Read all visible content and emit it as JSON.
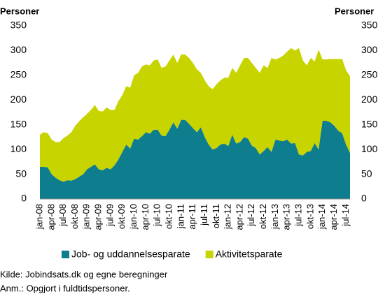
{
  "chart_data": {
    "type": "stacked_area",
    "y_label": "Personer",
    "y2_label": "Personer",
    "categories": [
      "jan-08",
      null,
      null,
      "apr-08",
      null,
      null,
      "jul-08",
      null,
      null,
      "okt-08",
      null,
      null,
      "jan-09",
      null,
      null,
      "apr-09",
      null,
      null,
      "jul-09",
      null,
      null,
      "okt-09",
      null,
      null,
      "jan-10",
      null,
      null,
      "apr-10",
      null,
      null,
      "jul-10",
      null,
      null,
      "okt-10",
      null,
      null,
      "jan-11",
      null,
      null,
      "apr-11",
      null,
      null,
      "jul-11",
      null,
      null,
      "okt-11",
      null,
      null,
      "jan-12",
      null,
      null,
      "apr-12",
      null,
      null,
      "jul-12",
      null,
      null,
      "okt-12",
      null,
      null,
      "jan-13",
      null,
      null,
      "apr-13",
      null,
      null,
      "jul-13",
      null,
      null,
      "okt-13",
      null,
      null,
      "jan-14",
      null,
      null,
      "apr-14",
      null,
      null,
      "jul-14",
      null
    ],
    "series": [
      {
        "name": "Job- og uddannelsesparate",
        "color": "#0e7e8e",
        "values": [
          65,
          65,
          64,
          50,
          43,
          38,
          35,
          38,
          37,
          40,
          45,
          50,
          60,
          65,
          70,
          60,
          58,
          63,
          60,
          68,
          80,
          95,
          110,
          102,
          122,
          120,
          127,
          135,
          132,
          140,
          140,
          128,
          127,
          140,
          155,
          142,
          160,
          160,
          152,
          143,
          135,
          145,
          125,
          110,
          100,
          103,
          110,
          112,
          107,
          130,
          112,
          115,
          125,
          122,
          108,
          103,
          90,
          97,
          105,
          95,
          120,
          118,
          117,
          120,
          112,
          113,
          90,
          88,
          95,
          97,
          113,
          100,
          158,
          158,
          155,
          148,
          138,
          133,
          110,
          93
        ]
      },
      {
        "name": "Aktivitetsparate",
        "color": "#c8d400",
        "values": [
          65,
          70,
          69,
          70,
          72,
          77,
          88,
          90,
          98,
          108,
          112,
          115,
          112,
          115,
          120,
          118,
          119,
          122,
          120,
          112,
          118,
          115,
          118,
          123,
          128,
          135,
          141,
          137,
          138,
          140,
          142,
          137,
          141,
          140,
          137,
          133,
          132,
          132,
          133,
          132,
          127,
          110,
          115,
          118,
          122,
          129,
          130,
          133,
          138,
          135,
          143,
          155,
          160,
          163,
          167,
          162,
          165,
          173,
          160,
          190,
          162,
          167,
          173,
          178,
          193,
          187,
          215,
          192,
          175,
          188,
          165,
          202,
          124,
          124,
          128,
          135,
          145,
          150,
          150,
          155
        ]
      }
    ],
    "ylim": [
      0,
      350
    ],
    "yticks": [
      0,
      50,
      100,
      150,
      200,
      250,
      300,
      350
    ],
    "y2lim": [
      0,
      350
    ],
    "y2ticks": [
      0,
      50,
      100,
      150,
      200,
      250,
      300,
      350
    ],
    "source": "Kilde: Jobindsats.dk og egne beregninger",
    "note": "Anm.: Opgjort i fuldtidspersoner."
  }
}
